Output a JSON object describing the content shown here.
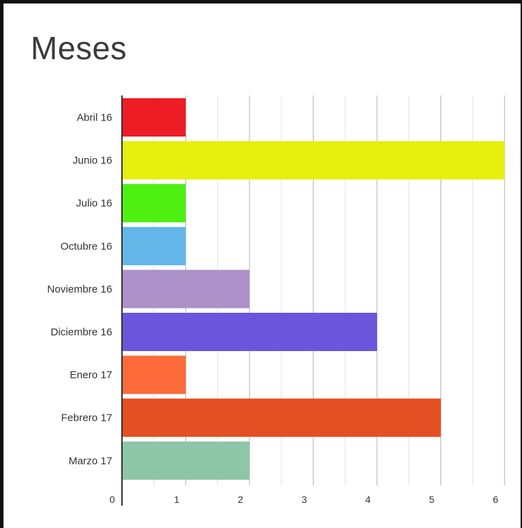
{
  "chart_data": {
    "type": "bar",
    "orientation": "horizontal",
    "title": "Meses",
    "xlabel": "",
    "ylabel": "",
    "categories": [
      "Abril 16",
      "Junio 16",
      "Julio 16",
      "Octubre 16",
      "Noviembre 16",
      "Diciembre 16",
      "Enero 17",
      "Febrero 17",
      "Marzo 17"
    ],
    "values": [
      1,
      6,
      1,
      1,
      2,
      4,
      1,
      5,
      2
    ],
    "colors": [
      "#ee1c25",
      "#e6ef0e",
      "#4ef012",
      "#62b6e8",
      "#ab91c8",
      "#6b55dd",
      "#fd6b3b",
      "#e44f23",
      "#8dc6a6"
    ],
    "xlim": [
      0,
      6
    ],
    "xticks": [
      "0",
      "1",
      "2",
      "3",
      "4",
      "5",
      "6"
    ],
    "grid": true,
    "legend": "none"
  }
}
